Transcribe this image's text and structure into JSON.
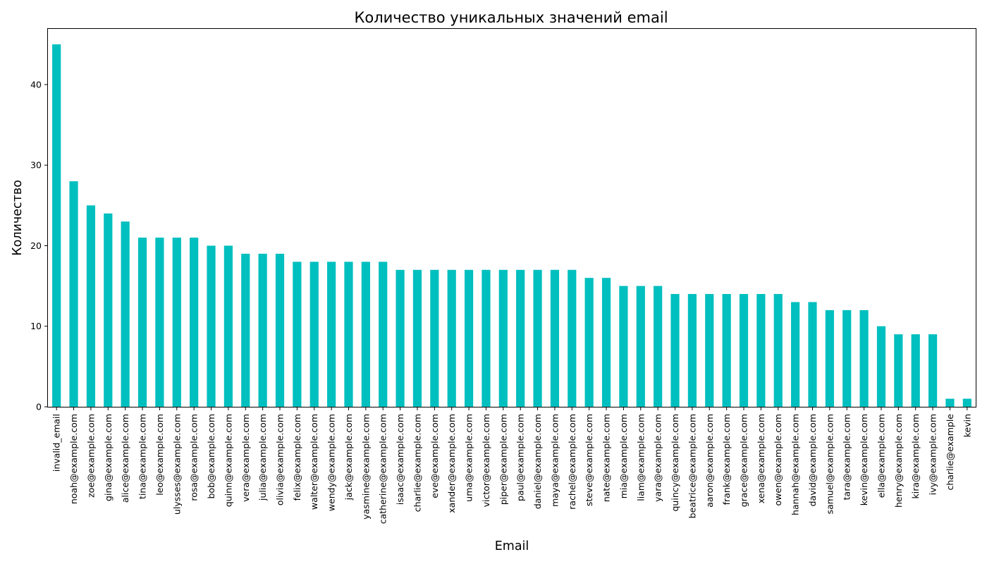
{
  "chart_data": {
    "type": "bar",
    "title": "Количество уникальных значений email",
    "xlabel": "Email",
    "ylabel": "Количество",
    "ylim": [
      0,
      47
    ],
    "yticks": [
      0,
      10,
      20,
      30,
      40
    ],
    "grid": false,
    "legend": "none",
    "bar_color": "#00bfbf",
    "categories": [
      "invalid_email",
      "noah@example.com",
      "zoe@example.com",
      "gina@example.com",
      "alice@example.com",
      "tina@example.com",
      "leo@example.com",
      "ulysses@example.com",
      "rosa@example.com",
      "bob@example.com",
      "quinn@example.com",
      "vera@example.com",
      "julia@example.com",
      "olivia@example.com",
      "felix@example.com",
      "walter@example.com",
      "wendy@example.com",
      "jack@example.com",
      "yasmine@example.com",
      "catherine@example.com",
      "isaac@example.com",
      "charlie@example.com",
      "eve@example.com",
      "xander@example.com",
      "uma@example.com",
      "victor@example.com",
      "piper@example.com",
      "paul@example.com",
      "daniel@example.com",
      "maya@example.com",
      "rachel@example.com",
      "steve@example.com",
      "nate@example.com",
      "mia@example.com",
      "liam@example.com",
      "yara@example.com",
      "quincy@example.com",
      "beatrice@example.com",
      "aaron@example.com",
      "frank@example.com",
      "grace@example.com",
      "xena@example.com",
      "owen@example.com",
      "hannah@example.com",
      "david@example.com",
      "samuel@example.com",
      "tara@example.com",
      "kevin@example.com",
      "ella@example.com",
      "henry@example.com",
      "kira@example.com",
      "ivy@example.com",
      "charlie@example",
      "kevin"
    ],
    "values": [
      45,
      28,
      25,
      24,
      23,
      21,
      21,
      21,
      21,
      20,
      20,
      19,
      19,
      19,
      18,
      18,
      18,
      18,
      18,
      18,
      17,
      17,
      17,
      17,
      17,
      17,
      17,
      17,
      17,
      17,
      17,
      16,
      16,
      15,
      15,
      15,
      14,
      14,
      14,
      14,
      14,
      14,
      14,
      13,
      13,
      12,
      12,
      12,
      10,
      9,
      9,
      9,
      1,
      1
    ]
  }
}
